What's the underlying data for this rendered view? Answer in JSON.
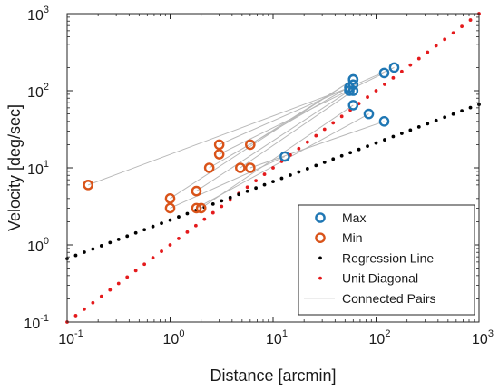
{
  "chart_data": {
    "type": "scatter",
    "title": "",
    "xlabel": "Distance [arcmin]",
    "ylabel": "Velocity [deg/sec]",
    "xscale": "log",
    "yscale": "log",
    "xlim": [
      0.1,
      1000
    ],
    "ylim": [
      0.1,
      1000
    ],
    "x_tick_labels": [
      {
        "base": "10",
        "exp": "-1"
      },
      {
        "base": "10",
        "exp": "0"
      },
      {
        "base": "10",
        "exp": "1"
      },
      {
        "base": "10",
        "exp": "2"
      },
      {
        "base": "10",
        "exp": "3"
      }
    ],
    "y_tick_labels": [
      {
        "base": "10",
        "exp": "-1"
      },
      {
        "base": "10",
        "exp": "0"
      },
      {
        "base": "10",
        "exp": "1"
      },
      {
        "base": "10",
        "exp": "2"
      },
      {
        "base": "10",
        "exp": "3"
      }
    ],
    "grid": false,
    "legend_position": "bottom-right",
    "legend": {
      "max": "Max",
      "min": "Min",
      "regression": "Regression Line",
      "unit": "Unit Diagonal",
      "pairs": "Connected Pairs"
    },
    "colors": {
      "max": "#1f77b4",
      "min": "#d95319",
      "regression": "#000000",
      "unit": "#e41a1c",
      "pairs": "#b8b8b8"
    },
    "pairs": [
      {
        "min": [
          0.16,
          6
        ],
        "max": [
          55,
          110
        ]
      },
      {
        "min": [
          1,
          4
        ],
        "max": [
          60,
          140
        ]
      },
      {
        "min": [
          1,
          3
        ],
        "max": [
          13,
          14
        ]
      },
      {
        "min": [
          1.8,
          5
        ],
        "max": [
          55,
          100
        ]
      },
      {
        "min": [
          1.8,
          3
        ],
        "max": [
          85,
          50
        ]
      },
      {
        "min": [
          2,
          3
        ],
        "max": [
          60,
          65
        ]
      },
      {
        "min": [
          2.4,
          10
        ],
        "max": [
          60,
          120
        ]
      },
      {
        "min": [
          3,
          20
        ],
        "max": [
          150,
          200
        ]
      },
      {
        "min": [
          3,
          15
        ],
        "max": [
          120,
          170
        ]
      },
      {
        "min": [
          4.8,
          10
        ],
        "max": [
          60,
          100
        ]
      },
      {
        "min": [
          6,
          10
        ],
        "max": [
          120,
          40
        ]
      },
      {
        "min": [
          6,
          20
        ],
        "max": [
          60,
          140
        ]
      }
    ],
    "regression_line": {
      "slope": 0.5,
      "intercept_at_1": 2.1
    },
    "unit_diagonal": {
      "slope": 1,
      "intercept_at_1": 1
    }
  }
}
